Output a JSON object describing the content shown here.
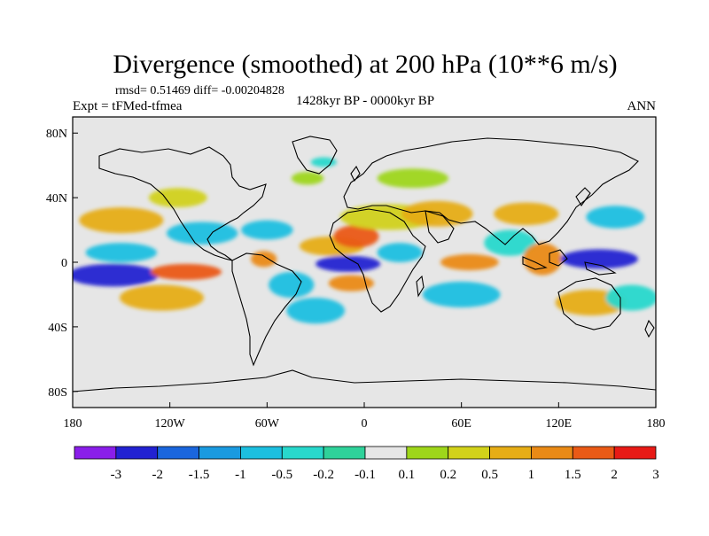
{
  "chart_data": {
    "type": "heatmap",
    "title": "Divergence (smoothed) at 200 hPa (10**6 m/s)",
    "stats_line": "rmsd= 0.51469 diff= -0.00204828",
    "experiment_label": "Expt = tFMed-tfmea",
    "period_label": "1428kyr BP - 0000kyr BP",
    "season_label": "ANN",
    "projection": "cylindrical equidistant",
    "lon_range": [
      -180,
      180
    ],
    "lat_range": [
      -90,
      90
    ],
    "x_ticks": [
      {
        "value": -180,
        "label": "180"
      },
      {
        "value": -120,
        "label": "120W"
      },
      {
        "value": -60,
        "label": "60W"
      },
      {
        "value": 0,
        "label": "0"
      },
      {
        "value": 60,
        "label": "60E"
      },
      {
        "value": 120,
        "label": "120E"
      },
      {
        "value": 180,
        "label": "180"
      }
    ],
    "y_ticks": [
      {
        "value": 80,
        "label": "80N"
      },
      {
        "value": 40,
        "label": "40N"
      },
      {
        "value": 0,
        "label": "0"
      },
      {
        "value": -40,
        "label": "40S"
      },
      {
        "value": -80,
        "label": "80S"
      }
    ],
    "colorbar": {
      "levels": [
        "-3",
        "-2",
        "-1.5",
        "-1",
        "-0.5",
        "-0.2",
        "-0.1",
        "0.1",
        "0.2",
        "0.5",
        "1",
        "1.5",
        "2",
        "3"
      ],
      "colors": [
        "#8a1eea",
        "#2222d2",
        "#1a66dd",
        "#1a9ae0",
        "#1cbfe0",
        "#28d8cc",
        "#2fd29a",
        "#e6e6e6",
        "#9ed61a",
        "#d2d21a",
        "#e6ad16",
        "#ea8a16",
        "#ea5a16",
        "#e81a16"
      ]
    },
    "anomaly_regions": [
      {
        "lon": -155,
        "lat": -8,
        "rx": 28,
        "ry": 7,
        "value": -2.5
      },
      {
        "lon": -150,
        "lat": 6,
        "rx": 22,
        "ry": 6,
        "value": -0.8
      },
      {
        "lon": -110,
        "lat": -6,
        "rx": 22,
        "ry": 5,
        "value": 1.6
      },
      {
        "lon": -125,
        "lat": -22,
        "rx": 26,
        "ry": 8,
        "value": 0.8
      },
      {
        "lon": -150,
        "lat": 26,
        "rx": 26,
        "ry": 8,
        "value": 0.7
      },
      {
        "lon": -100,
        "lat": 18,
        "rx": 22,
        "ry": 7,
        "value": -0.7
      },
      {
        "lon": -115,
        "lat": 40,
        "rx": 18,
        "ry": 6,
        "value": 0.5
      },
      {
        "lon": -60,
        "lat": 20,
        "rx": 16,
        "ry": 6,
        "value": -0.6
      },
      {
        "lon": -62,
        "lat": 2,
        "rx": 8,
        "ry": 5,
        "value": 1.2
      },
      {
        "lon": -45,
        "lat": -14,
        "rx": 14,
        "ry": 8,
        "value": -0.8
      },
      {
        "lon": -30,
        "lat": -30,
        "rx": 18,
        "ry": 8,
        "value": -0.5
      },
      {
        "lon": -20,
        "lat": 10,
        "rx": 20,
        "ry": 6,
        "value": 0.6
      },
      {
        "lon": -10,
        "lat": -1,
        "rx": 20,
        "ry": 5,
        "value": -2.2
      },
      {
        "lon": -8,
        "lat": -13,
        "rx": 14,
        "ry": 5,
        "value": 1.3
      },
      {
        "lon": -5,
        "lat": 16,
        "rx": 14,
        "ry": 7,
        "value": 2.0
      },
      {
        "lon": 15,
        "lat": 28,
        "rx": 30,
        "ry": 8,
        "value": 0.5
      },
      {
        "lon": 45,
        "lat": 30,
        "rx": 22,
        "ry": 8,
        "value": 0.8
      },
      {
        "lon": 30,
        "lat": 52,
        "rx": 22,
        "ry": 6,
        "value": 0.2
      },
      {
        "lon": 22,
        "lat": 6,
        "rx": 14,
        "ry": 6,
        "value": -0.7
      },
      {
        "lon": 65,
        "lat": 0,
        "rx": 18,
        "ry": 5,
        "value": 1.4
      },
      {
        "lon": 60,
        "lat": -20,
        "rx": 24,
        "ry": 8,
        "value": -0.5
      },
      {
        "lon": 90,
        "lat": 12,
        "rx": 16,
        "ry": 8,
        "value": -0.4
      },
      {
        "lon": 100,
        "lat": 30,
        "rx": 20,
        "ry": 7,
        "value": 0.6
      },
      {
        "lon": 110,
        "lat": 2,
        "rx": 12,
        "ry": 10,
        "value": 1.1
      },
      {
        "lon": 145,
        "lat": 2,
        "rx": 24,
        "ry": 6,
        "value": -2.1
      },
      {
        "lon": 155,
        "lat": 28,
        "rx": 18,
        "ry": 7,
        "value": -0.5
      },
      {
        "lon": 140,
        "lat": -25,
        "rx": 22,
        "ry": 8,
        "value": 0.7
      },
      {
        "lon": 165,
        "lat": -22,
        "rx": 16,
        "ry": 8,
        "value": -0.4
      },
      {
        "lon": -35,
        "lat": 52,
        "rx": 10,
        "ry": 4,
        "value": 0.2
      },
      {
        "lon": -25,
        "lat": 62,
        "rx": 8,
        "ry": 3,
        "value": -0.2
      }
    ]
  }
}
